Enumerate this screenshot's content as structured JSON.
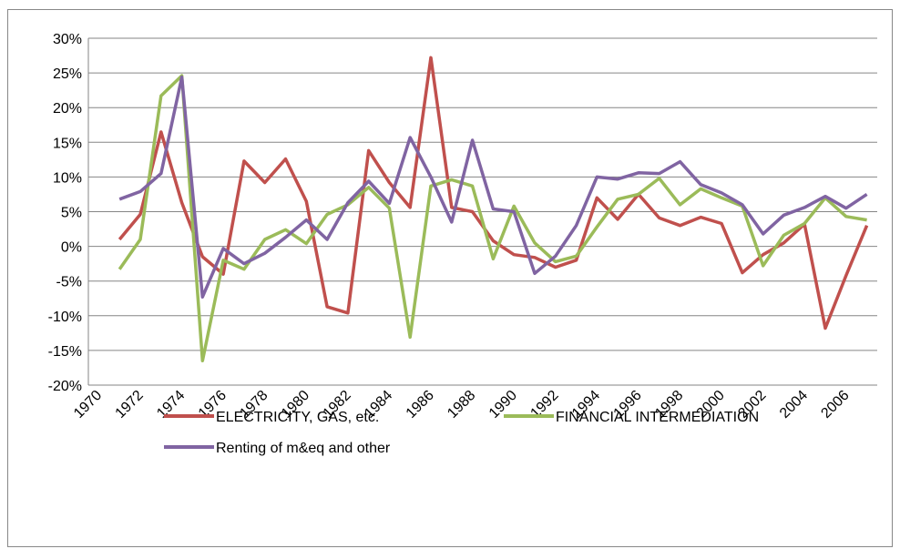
{
  "chart_data": {
    "type": "line",
    "categories": [
      "1970",
      null,
      "1972",
      null,
      "1974",
      null,
      "1976",
      null,
      "1978",
      null,
      "1980",
      null,
      "1982",
      null,
      "1984",
      null,
      "1986",
      null,
      "1988",
      null,
      "1990",
      null,
      "1992",
      null,
      "1994",
      null,
      "1996",
      null,
      "1998",
      null,
      "2000",
      null,
      "2002",
      null,
      "2004",
      null,
      "2006",
      null
    ],
    "series": [
      {
        "name": "ELECTRICITY,  GAS, etc.",
        "color": "#c0504d",
        "values": [
          null,
          1,
          4.6,
          16.5,
          6.3,
          -1.5,
          -4,
          12.3,
          9.2,
          12.6,
          6.5,
          -8.7,
          -9.6,
          13.8,
          9.2,
          5.6,
          27.2,
          5.6,
          5,
          0.8,
          -1.2,
          -1.6,
          -3,
          -2,
          7,
          3.9,
          7.5,
          4.1,
          3,
          4.2,
          3.3,
          -3.8,
          -1.2,
          0.5,
          3.2,
          -11.8,
          -4.2,
          3
        ]
      },
      {
        "name": "FINANCIAL INTERMEDIATION",
        "color": "#9bbb59",
        "values": [
          null,
          -3.3,
          1,
          21.7,
          24.6,
          -16.5,
          -2,
          -3.3,
          1,
          2.4,
          0.4,
          4.6,
          6,
          8.5,
          5.5,
          -13.1,
          8.7,
          9.6,
          8.7,
          -1.8,
          5.8,
          0.5,
          -2.2,
          -1.4,
          2.8,
          6.8,
          7.5,
          9.8,
          6,
          8.3,
          7,
          5.8,
          -2.8,
          1.6,
          3.3,
          7,
          4.3,
          3.8
        ]
      },
      {
        "name": "Renting of m&eq and other",
        "color": "#8064a2",
        "values": [
          null,
          6.8,
          7.9,
          10.5,
          24.4,
          -7.3,
          -0.3,
          -2.5,
          -1,
          1.3,
          3.8,
          1,
          6.3,
          9.4,
          6.2,
          15.7,
          10,
          3.5,
          15.3,
          5.4,
          5,
          -3.9,
          -1.4,
          3,
          10,
          9.7,
          10.6,
          10.5,
          12.2,
          8.9,
          7.7,
          6,
          1.8,
          4.5,
          5.6,
          7.2,
          5.5,
          7.5
        ]
      }
    ],
    "ylim": [
      -20,
      30
    ],
    "yticks": [
      {
        "value": -20,
        "label": "-20%"
      },
      {
        "value": -15,
        "label": "-15%"
      },
      {
        "value": -10,
        "label": "-10%"
      },
      {
        "value": -5,
        "label": "-5%"
      },
      {
        "value": 0,
        "label": "0%"
      },
      {
        "value": 5,
        "label": "5%"
      },
      {
        "value": 10,
        "label": "10%"
      },
      {
        "value": 15,
        "label": "15%"
      },
      {
        "value": 20,
        "label": "20%"
      },
      {
        "value": 25,
        "label": "25%"
      },
      {
        "value": 30,
        "label": "30%"
      }
    ],
    "grid": true,
    "legend": "bottom"
  }
}
